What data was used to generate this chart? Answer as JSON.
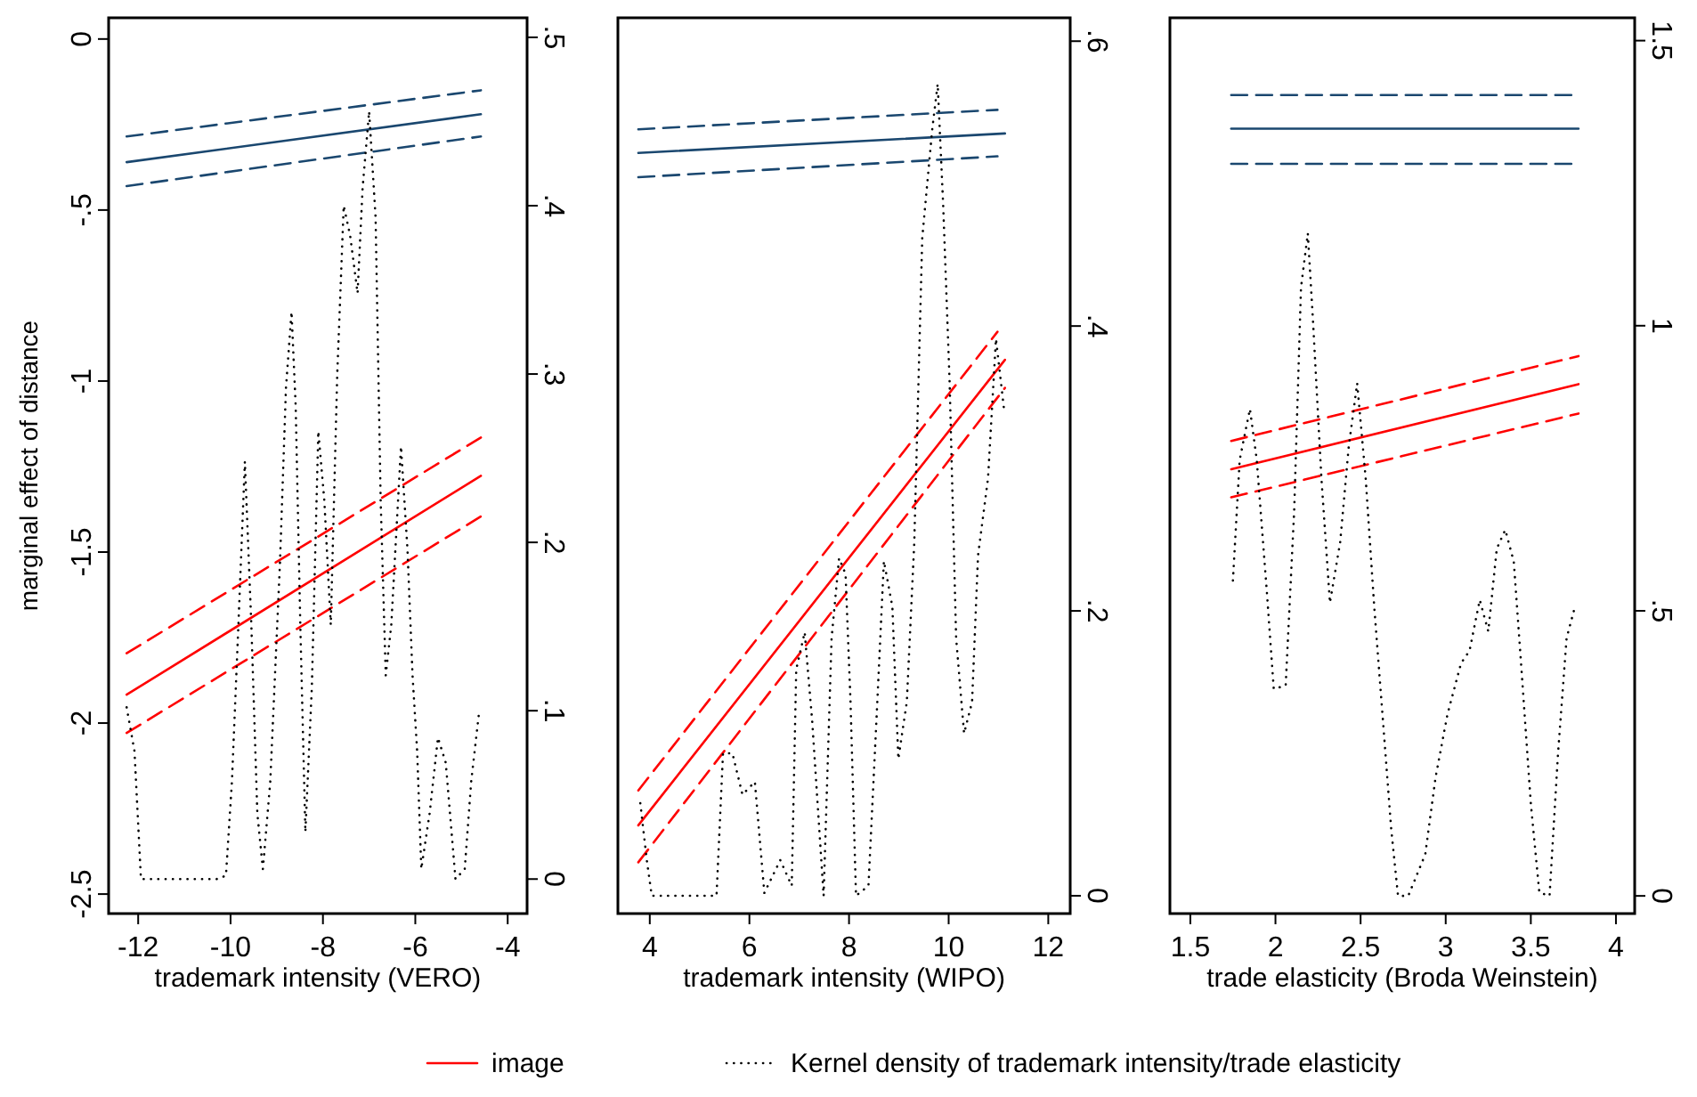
{
  "chart_data": [
    {
      "type": "line",
      "xlabel": "trademark intensity (VERO)",
      "ylabel": "marginal effect of distance",
      "xlim": [
        -12.64,
        -3.58
      ],
      "xticks": [
        -12,
        -10,
        -8,
        -6,
        -4
      ],
      "ylim": [
        -2.557,
        0.062
      ],
      "yticks": [
        -2.5,
        -2,
        -1.5,
        -1,
        {
          "value": -0.5,
          "label": "-.5"
        },
        0
      ],
      "y2lim": [
        -0.0205,
        0.5116
      ],
      "y2ticks": [
        0,
        {
          "value": 0.1,
          "label": ".1"
        },
        {
          "value": 0.2,
          "label": ".2"
        },
        {
          "value": 0.3,
          "label": ".3"
        },
        {
          "value": 0.4,
          "label": ".4"
        },
        {
          "value": 0.5,
          "label": ".5"
        }
      ],
      "legend": "bottom",
      "series": [
        {
          "color": "#1a476f",
          "line_style": "solid",
          "x": [
            -12.25,
            -4.58
          ],
          "values": [
            -0.36,
            -0.22
          ]
        },
        {
          "color": "#1a476f",
          "line_style": "dashed",
          "x": [
            -12.25,
            -4.58
          ],
          "values": [
            -0.285,
            -0.15
          ]
        },
        {
          "color": "#1a476f",
          "line_style": "dashed",
          "x": [
            -12.25,
            -4.58
          ],
          "values": [
            -0.43,
            -0.285
          ]
        },
        {
          "name": "image",
          "color": "#ff0000",
          "line_style": "solid",
          "x": [
            -12.25,
            -4.58
          ],
          "values": [
            -1.917,
            -1.277
          ]
        },
        {
          "color": "#ff0000",
          "line_style": "dashed",
          "x": [
            -12.25,
            -4.58
          ],
          "values": [
            -1.796,
            -1.165
          ]
        },
        {
          "color": "#ff0000",
          "line_style": "dashed",
          "x": [
            -12.25,
            -4.58
          ],
          "values": [
            -2.029,
            -1.396
          ]
        },
        {
          "name": "Kernel density of trademark intensity/trade elasticity",
          "color": "#000000",
          "line_style": "dotted",
          "axis": "y2",
          "x": [
            -12.25,
            -12.08,
            -11.94,
            -11.42,
            -10.3,
            -10.1,
            -9.97,
            -9.83,
            -9.69,
            -9.55,
            -9.42,
            -9.3,
            -9.14,
            -8.93,
            -8.8,
            -8.68,
            -8.59,
            -8.49,
            -8.38,
            -8.24,
            -8.1,
            -7.97,
            -7.83,
            -7.69,
            -7.55,
            -7.41,
            -7.25,
            -7.14,
            -7.0,
            -6.86,
            -6.75,
            -6.64,
            -6.52,
            -6.31,
            -6.17,
            -6.06,
            -5.96,
            -5.87,
            -5.69,
            -5.51,
            -5.34,
            -5.13,
            -4.93,
            -4.79,
            -4.62
          ],
          "values": [
            0.102,
            0.076,
            0,
            0,
            0,
            0.002,
            0.058,
            0.151,
            0.248,
            0.151,
            0.039,
            0.006,
            0.058,
            0.188,
            0.292,
            0.337,
            0.281,
            0.151,
            0.028,
            0.114,
            0.266,
            0.225,
            0.151,
            0.3,
            0.4,
            0.382,
            0.348,
            0.411,
            0.456,
            0.393,
            0.225,
            0.121,
            0.151,
            0.257,
            0.196,
            0.121,
            0.076,
            0.006,
            0.039,
            0.084,
            0.069,
            0,
            0.006,
            0.058,
            0.099
          ]
        }
      ]
    },
    {
      "type": "line",
      "xlabel": "trademark intensity (WIPO)",
      "tick_labels": [
        "x",
        "y2"
      ],
      "xlim": [
        3.36,
        12.44
      ],
      "xticks": [
        4,
        6,
        8,
        10,
        12
      ],
      "ylim": [
        -2.557,
        0.062
      ],
      "y2lim": [
        -0.0125,
        0.6164
      ],
      "y2ticks": [
        0,
        {
          "value": 0.2,
          "label": ".2"
        },
        {
          "value": 0.4,
          "label": ".4"
        },
        {
          "value": 0.6,
          "label": ".6"
        }
      ],
      "series": [
        {
          "color": "#1a476f",
          "line_style": "solid",
          "x": [
            3.77,
            11.13
          ],
          "values": [
            -0.333,
            -0.276
          ]
        },
        {
          "color": "#1a476f",
          "line_style": "dashed",
          "x": [
            3.77,
            10.98
          ],
          "values": [
            -0.264,
            -0.207
          ]
        },
        {
          "color": "#1a476f",
          "line_style": "dashed",
          "x": [
            3.77,
            10.98
          ],
          "values": [
            -0.404,
            -0.343
          ]
        },
        {
          "color": "#ff0000",
          "line_style": "solid",
          "x": [
            3.77,
            11.13
          ],
          "values": [
            -2.299,
            -0.938
          ]
        },
        {
          "color": "#ff0000",
          "line_style": "dashed",
          "x": [
            3.77,
            10.98
          ],
          "values": [
            -2.197,
            -0.856
          ]
        },
        {
          "color": "#ff0000",
          "line_style": "dashed",
          "x": [
            3.77,
            11.13
          ],
          "values": [
            -2.407,
            -1.02
          ]
        },
        {
          "color": "#000000",
          "line_style": "dotted",
          "axis": "y2",
          "x": [
            3.81,
            3.94,
            4.04,
            5.34,
            5.47,
            5.66,
            5.86,
            6.11,
            6.3,
            6.62,
            6.85,
            6.94,
            7.11,
            7.26,
            7.49,
            7.65,
            7.8,
            7.93,
            8.03,
            8.14,
            8.39,
            8.55,
            8.7,
            8.87,
            8.99,
            9.16,
            9.31,
            9.47,
            9.67,
            9.78,
            9.89,
            10.02,
            10.15,
            10.31,
            10.47,
            10.59,
            10.79,
            10.95,
            11.11
          ],
          "values": [
            0.065,
            0.025,
            0,
            0,
            0.1,
            0.1,
            0.071,
            0.08,
            0.002,
            0.025,
            0.007,
            0.159,
            0.185,
            0.123,
            0,
            0.181,
            0.237,
            0.226,
            0.136,
            0,
            0.007,
            0.123,
            0.235,
            0.203,
            0.096,
            0.136,
            0.248,
            0.462,
            0.538,
            0.57,
            0.485,
            0.36,
            0.181,
            0.114,
            0.136,
            0.239,
            0.293,
            0.391,
            0.342
          ]
        }
      ]
    },
    {
      "type": "line",
      "xlabel": "trade elasticity (Broda Weinstein)",
      "tick_labels": [
        "x",
        "y2"
      ],
      "xlim": [
        1.38,
        4.11
      ],
      "xticks": [
        1.5,
        2,
        2.5,
        3,
        3.5,
        4
      ],
      "ylim": [
        -2.557,
        0.062
      ],
      "y2lim": [
        -0.031,
        1.54
      ],
      "y2ticks": [
        0,
        {
          "value": 0.5,
          "label": ".5"
        },
        1,
        1.5
      ],
      "series": [
        {
          "color": "#1a476f",
          "line_style": "solid",
          "x": [
            1.74,
            3.78
          ],
          "values": [
            -0.262,
            -0.262
          ]
        },
        {
          "color": "#1a476f",
          "line_style": "dashed",
          "x": [
            1.74,
            3.78
          ],
          "values": [
            -0.164,
            -0.164
          ]
        },
        {
          "color": "#1a476f",
          "line_style": "dashed",
          "x": [
            1.74,
            3.78
          ],
          "values": [
            -0.365,
            -0.365
          ]
        },
        {
          "color": "#ff0000",
          "line_style": "solid",
          "x": [
            1.74,
            3.78
          ],
          "values": [
            -1.258,
            -1.009
          ]
        },
        {
          "color": "#ff0000",
          "line_style": "dashed",
          "x": [
            1.74,
            3.78
          ],
          "values": [
            -1.175,
            -0.927
          ]
        },
        {
          "color": "#ff0000",
          "line_style": "dashed",
          "x": [
            1.74,
            3.78
          ],
          "values": [
            -1.34,
            -1.095
          ]
        },
        {
          "color": "#000000",
          "line_style": "dotted",
          "axis": "y2",
          "x": [
            1.75,
            1.79,
            1.85,
            1.89,
            1.95,
            1.99,
            2.06,
            2.11,
            2.15,
            2.19,
            2.22,
            2.27,
            2.32,
            2.38,
            2.43,
            2.48,
            2.53,
            2.58,
            2.64,
            2.68,
            2.72,
            2.78,
            2.88,
            2.94,
            3.01,
            3.09,
            3.14,
            3.2,
            3.25,
            3.3,
            3.35,
            3.4,
            3.44,
            3.5,
            3.55,
            3.61,
            3.66,
            3.71,
            3.76
          ],
          "values": [
            0.553,
            0.765,
            0.854,
            0.765,
            0.531,
            0.363,
            0.369,
            0.676,
            1.067,
            1.162,
            1.011,
            0.732,
            0.514,
            0.62,
            0.787,
            0.899,
            0.732,
            0.508,
            0.274,
            0.117,
            0,
            0,
            0.073,
            0.207,
            0.318,
            0.408,
            0.43,
            0.519,
            0.464,
            0.609,
            0.642,
            0.586,
            0.419,
            0.162,
            0.006,
            0,
            0.251,
            0.452,
            0.508
          ]
        }
      ]
    }
  ]
}
